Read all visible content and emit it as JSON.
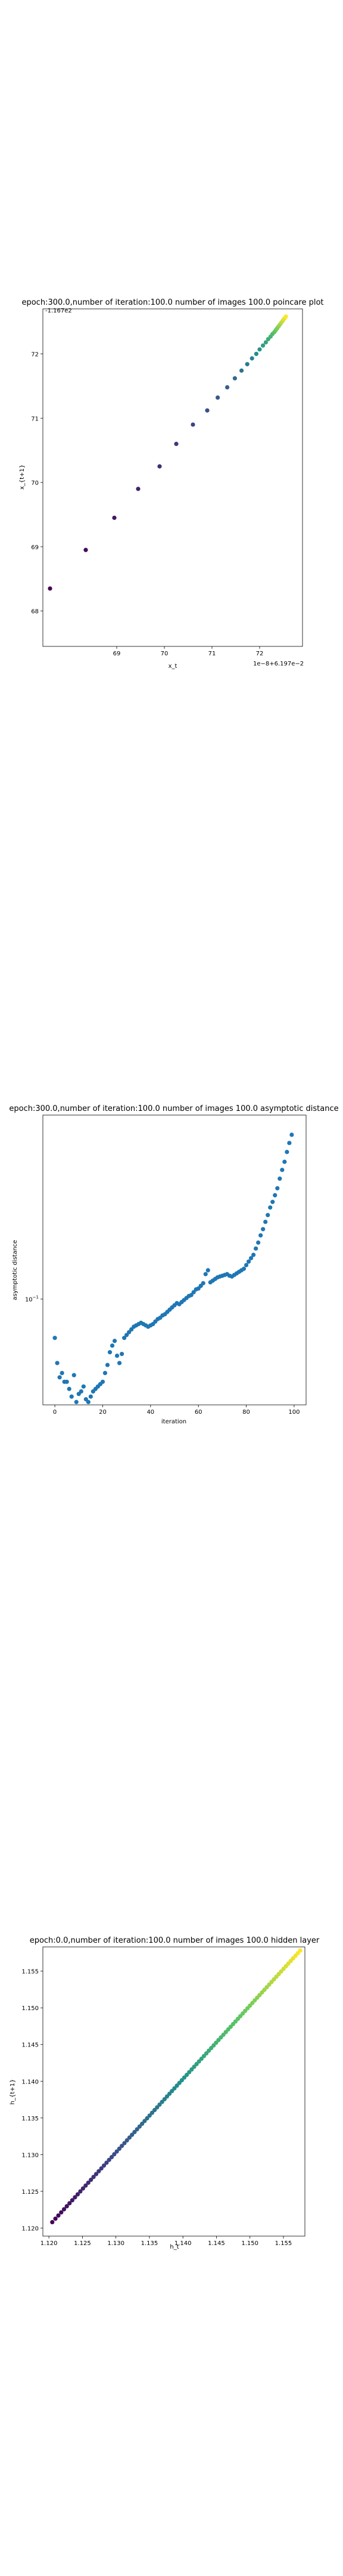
{
  "colors": {
    "series_blue": "#1f77b4",
    "frame": "#000000"
  },
  "chart_data": [
    {
      "type": "scatter",
      "title": "epoch:300.0,number of iteration:100.0 number of images 100.0 poincare plot",
      "xlabel": "x_t",
      "ylabel": "x_{t+1}",
      "xlim": [
        67.45,
        72.9
      ],
      "ylim": [
        67.45,
        72.7
      ],
      "xticks": [
        69,
        70,
        71,
        72
      ],
      "yticks": [
        68,
        69,
        70,
        71,
        72
      ],
      "offset_label_top": "-1.167e2",
      "offset_label_bottom": "1e−8+6.197e−2",
      "colormap": "viridis",
      "x": [
        67.6,
        68.35,
        68.95,
        69.45,
        69.9,
        70.25,
        70.6,
        70.9,
        71.12,
        71.32,
        71.48,
        71.62,
        71.74,
        71.84,
        71.93,
        72.0,
        72.07,
        72.13,
        72.18,
        72.23,
        72.27,
        72.31,
        72.34,
        72.37,
        72.4,
        72.43,
        72.46,
        72.49,
        72.52,
        72.55
      ],
      "y": [
        68.35,
        68.95,
        69.45,
        69.9,
        70.25,
        70.6,
        70.9,
        71.12,
        71.32,
        71.48,
        71.62,
        71.74,
        71.84,
        71.93,
        72.0,
        72.07,
        72.13,
        72.18,
        72.23,
        72.27,
        72.31,
        72.34,
        72.37,
        72.4,
        72.43,
        72.46,
        72.49,
        72.52,
        72.55,
        72.58
      ]
    },
    {
      "type": "scatter",
      "title": "epoch:300.0,number of iteration:100.0  number of images 100.0 asymptotic distance",
      "xlabel": "iteration",
      "ylabel": "asymptotic distance",
      "xlim": [
        -5,
        105
      ],
      "ylim": [
        0.035,
        0.62
      ],
      "yscale": "log",
      "xticks": [
        0,
        20,
        40,
        60,
        80,
        100
      ],
      "yticks": [
        0.1
      ],
      "ytick_labels": [
        "10^-1"
      ],
      "x": [
        0,
        1,
        2,
        3,
        4,
        5,
        6,
        7,
        8,
        9,
        10,
        11,
        12,
        13,
        14,
        15,
        16,
        17,
        18,
        19,
        20,
        21,
        22,
        23,
        24,
        25,
        26,
        27,
        28,
        29,
        30,
        31,
        32,
        33,
        34,
        35,
        36,
        37,
        38,
        39,
        40,
        41,
        42,
        43,
        44,
        45,
        46,
        47,
        48,
        49,
        50,
        51,
        52,
        53,
        54,
        55,
        56,
        57,
        58,
        59,
        60,
        61,
        62,
        63,
        64,
        65,
        66,
        67,
        68,
        69,
        70,
        71,
        72,
        73,
        74,
        75,
        76,
        77,
        78,
        79,
        80,
        81,
        82,
        83,
        84,
        85,
        86,
        87,
        88,
        89,
        90,
        91,
        92,
        93,
        94,
        95,
        96,
        97,
        98,
        99
      ],
      "y": [
        0.068,
        0.053,
        0.046,
        0.048,
        0.044,
        0.044,
        0.041,
        0.038,
        0.047,
        0.036,
        0.039,
        0.04,
        0.042,
        0.037,
        0.036,
        0.038,
        0.04,
        0.041,
        0.042,
        0.043,
        0.044,
        0.048,
        0.052,
        0.059,
        0.063,
        0.066,
        0.057,
        0.053,
        0.058,
        0.068,
        0.07,
        0.072,
        0.074,
        0.076,
        0.077,
        0.078,
        0.079,
        0.078,
        0.077,
        0.076,
        0.077,
        0.078,
        0.08,
        0.082,
        0.083,
        0.085,
        0.086,
        0.088,
        0.09,
        0.092,
        0.094,
        0.096,
        0.095,
        0.097,
        0.099,
        0.101,
        0.103,
        0.104,
        0.107,
        0.11,
        0.111,
        0.114,
        0.117,
        0.128,
        0.133,
        0.118,
        0.12,
        0.122,
        0.124,
        0.125,
        0.126,
        0.127,
        0.128,
        0.126,
        0.125,
        0.127,
        0.129,
        0.131,
        0.133,
        0.135,
        0.14,
        0.145,
        0.15,
        0.155,
        0.165,
        0.175,
        0.188,
        0.2,
        0.215,
        0.23,
        0.248,
        0.262,
        0.28,
        0.3,
        0.33,
        0.36,
        0.39,
        0.43,
        0.47,
        0.51
      ]
    },
    {
      "type": "scatter",
      "title": "epoch:0.0,number of iteration:100.0  number of images 100.0 hidden layer",
      "xlabel": "h_t",
      "ylabel": "h_{t+1}",
      "xlim": [
        1.1191,
        1.1582
      ],
      "ylim": [
        1.1189,
        1.1583
      ],
      "xticks": [
        1.12,
        1.125,
        1.13,
        1.135,
        1.14,
        1.145,
        1.15,
        1.155
      ],
      "yticks": [
        1.12,
        1.125,
        1.13,
        1.135,
        1.14,
        1.145,
        1.15,
        1.155
      ],
      "colormap": "viridis",
      "x_start": 1.1205,
      "x_end": 1.1575,
      "n_points": 100
    }
  ]
}
